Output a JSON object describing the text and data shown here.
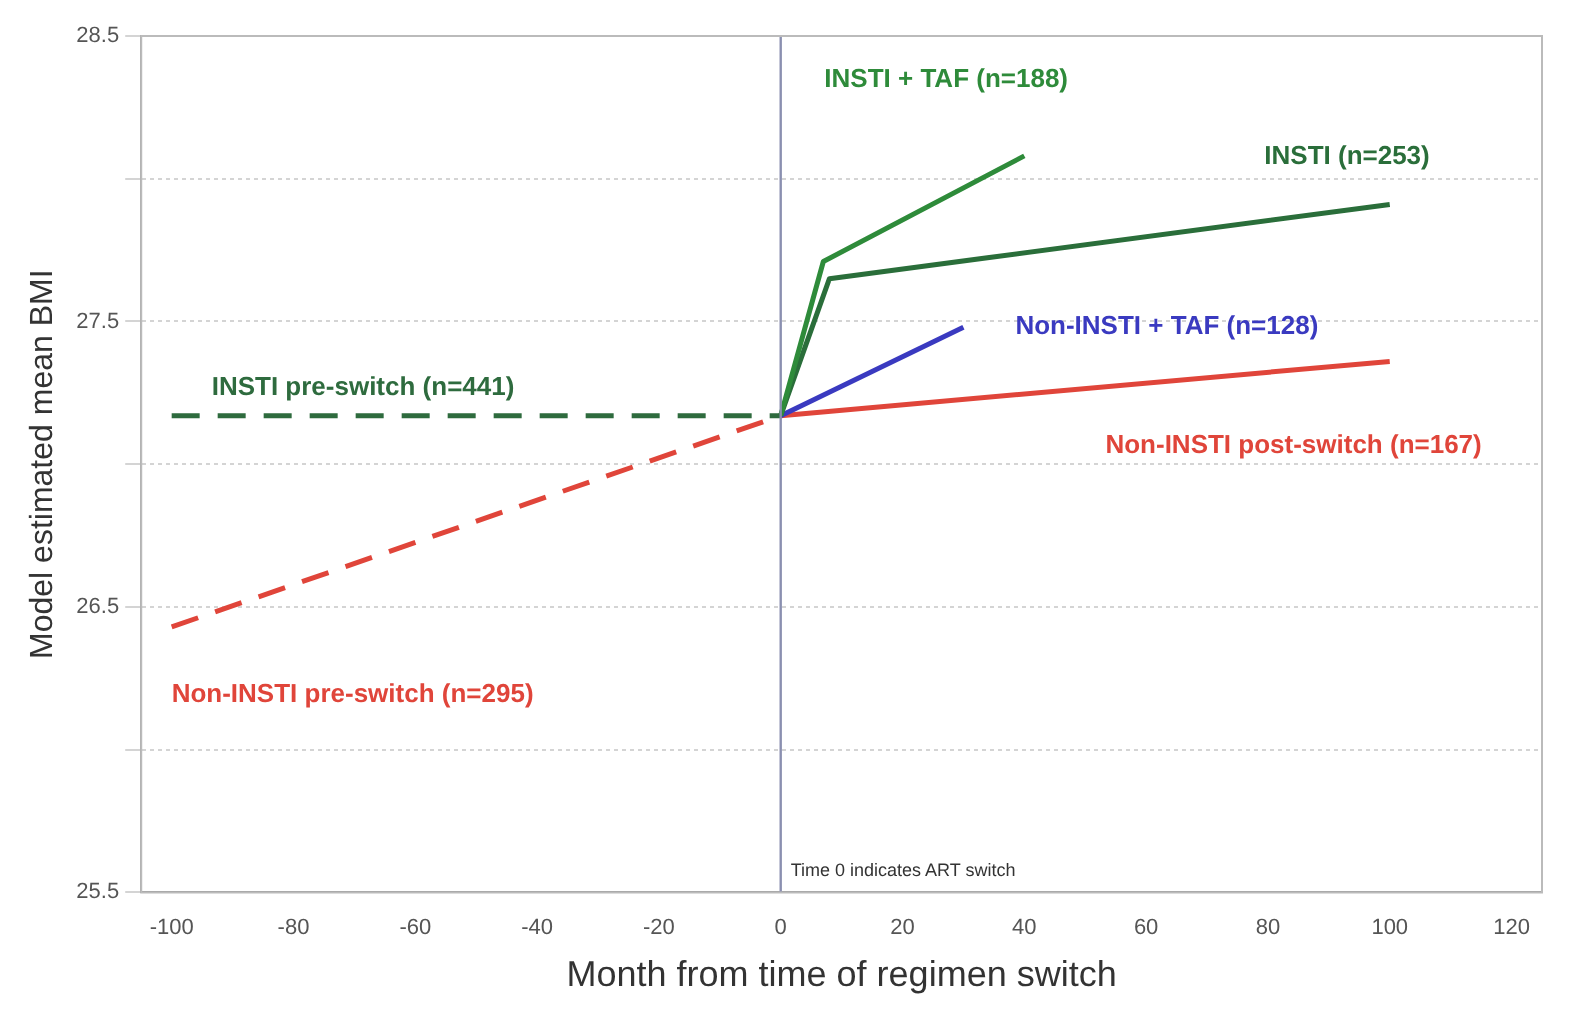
{
  "chart_data": {
    "type": "line",
    "xlabel": "Month from time of regimen switch",
    "ylabel": "Model estimated mean BMI",
    "xlim": [
      -105,
      125
    ],
    "xticks": [
      -100,
      -80,
      -60,
      -40,
      -20,
      0,
      20,
      40,
      60,
      80,
      100,
      120
    ],
    "ylim": [
      25.5,
      28.5
    ],
    "yticks": [
      25.5,
      {
        "value": 26,
        "label": null
      },
      26.5,
      {
        "value": 27,
        "label": null
      },
      27.5,
      {
        "value": 28,
        "label": null
      },
      28.5
    ],
    "grid": "y",
    "legend": false,
    "marker": "none",
    "ref_lines": [
      {
        "axis": "x",
        "value": 0,
        "label": "Time 0 indicates ART switch",
        "color": "#8a8fb0"
      }
    ],
    "series": [
      {
        "name": "INSTI pre-switch (n=441)",
        "color": "#2e6b3e",
        "line_style": "dashed",
        "x": [
          -100,
          0
        ],
        "values": [
          27.17,
          27.17
        ]
      },
      {
        "name": "Non-INSTI pre-switch (n=295)",
        "color": "#e0453a",
        "line_style": "dashed",
        "x": [
          -100,
          0
        ],
        "values": [
          26.43,
          27.17
        ]
      },
      {
        "name": "INSTI + TAF (n=188)",
        "color": "#2e8b3a",
        "line_style": "solid",
        "x": [
          0,
          7,
          40
        ],
        "values": [
          27.17,
          27.71,
          28.08
        ]
      },
      {
        "name": "INSTI (n=253)",
        "color": "#2a6e3a",
        "line_style": "solid",
        "x": [
          0,
          8,
          100
        ],
        "values": [
          27.17,
          27.65,
          27.91
        ]
      },
      {
        "name": "Non-INSTI + TAF (n=128)",
        "color": "#3a3ac0",
        "line_style": "solid",
        "x": [
          0,
          30
        ],
        "values": [
          27.17,
          27.48
        ]
      },
      {
        "name": "Non-INSTI post-switch (n=167)",
        "color": "#e0453a",
        "line_style": "solid",
        "x": [
          0,
          100
        ],
        "values": [
          27.17,
          27.36
        ]
      }
    ]
  }
}
